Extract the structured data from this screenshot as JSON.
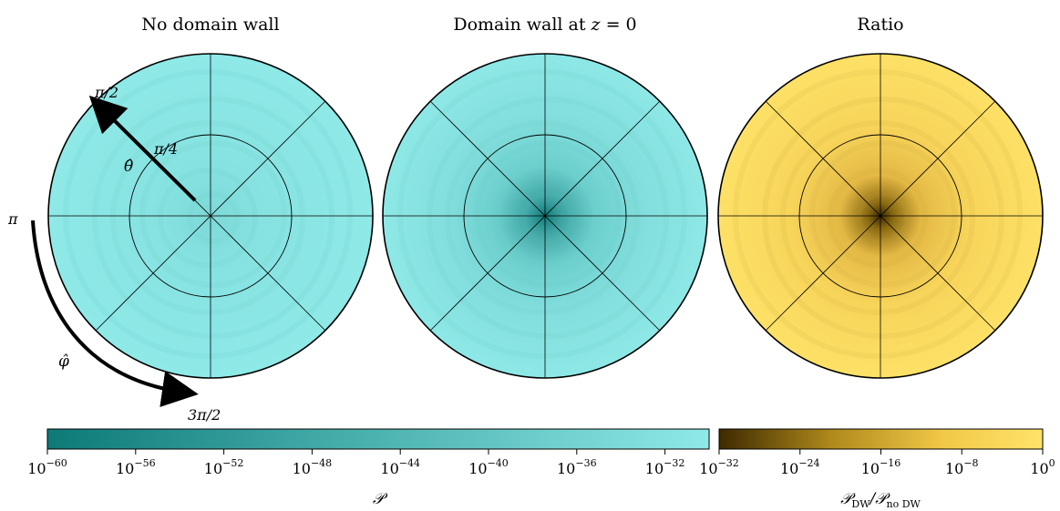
{
  "chart_data": [
    {
      "type": "heatmap",
      "projection": "polar",
      "title": "No domain wall",
      "colormap": "teal",
      "color_range": [
        "#0d7a78",
        "#8ee9e7"
      ],
      "description_value": "nearly uniform high probability"
    },
    {
      "type": "heatmap",
      "projection": "polar",
      "title": "Domain wall at z = 0",
      "title_parts": {
        "prefix": "Domain wall at ",
        "var": "z",
        "suffix": " = 0"
      },
      "colormap": "teal",
      "color_range": [
        "#0d7a78",
        "#8ee9e7"
      ]
    },
    {
      "type": "heatmap",
      "projection": "polar",
      "title": "Ratio",
      "colormap": "gold",
      "color_range": [
        "#3d2a00",
        "#ffe36a"
      ]
    }
  ],
  "polar_annotations": {
    "theta_labels": [
      "π/2",
      "π/4"
    ],
    "phi_labels": [
      "π",
      "3π/2"
    ],
    "theta_symbol": "θ̂",
    "phi_symbol": "φ̂"
  },
  "colorbars": [
    {
      "label": "𝒫",
      "scale": "log",
      "range": [
        1e-60,
        1e-30
      ],
      "ticks": [
        {
          "base": "10",
          "exp": "−60",
          "value": 1e-60
        },
        {
          "base": "10",
          "exp": "−56",
          "value": 1e-56
        },
        {
          "base": "10",
          "exp": "−52",
          "value": 1e-52
        },
        {
          "base": "10",
          "exp": "−48",
          "value": 1e-48
        },
        {
          "base": "10",
          "exp": "−44",
          "value": 1e-44
        },
        {
          "base": "10",
          "exp": "−40",
          "value": 1e-40
        },
        {
          "base": "10",
          "exp": "−36",
          "value": 1e-36
        },
        {
          "base": "10",
          "exp": "−32",
          "value": 1e-32
        }
      ],
      "colors": [
        "#0d7a78",
        "#8ee9e7"
      ]
    },
    {
      "label_main": "𝒫",
      "label_sub1": "DW",
      "label_sep": "/𝒫",
      "label_sub2": "no DW",
      "scale": "log",
      "range": [
        1e-32,
        1
      ],
      "ticks": [
        {
          "base": "10",
          "exp": "−32",
          "value": 1e-32
        },
        {
          "base": "10",
          "exp": "−24",
          "value": 1e-24
        },
        {
          "base": "10",
          "exp": "−16",
          "value": 1e-16
        },
        {
          "base": "10",
          "exp": "−8",
          "value": 1e-08
        },
        {
          "base": "10",
          "exp": "0",
          "value": 1
        }
      ],
      "colors": [
        "#3d2a00",
        "#ffe36a"
      ]
    }
  ]
}
